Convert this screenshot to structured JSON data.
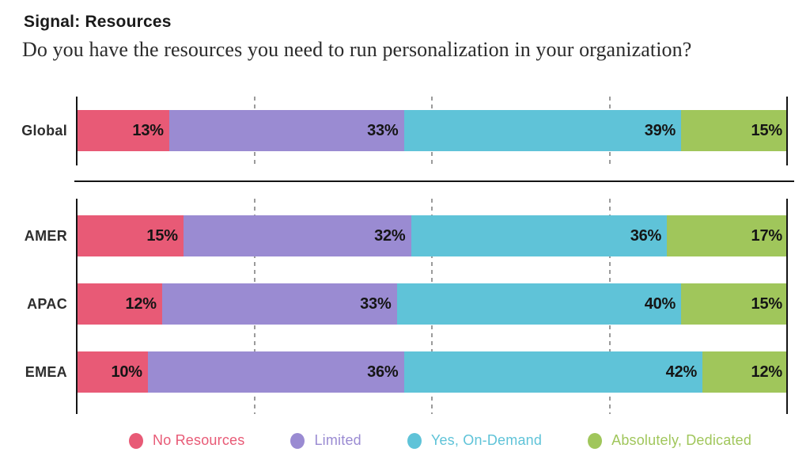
{
  "header": {
    "title": "Signal: Resources",
    "question": "Do you have the resources you need to run personalization in your organization?"
  },
  "chart_data": {
    "type": "bar",
    "orientation": "horizontal",
    "stacked": true,
    "unit": "%",
    "xlim": [
      0,
      100
    ],
    "gridlines_percent": [
      25,
      50,
      75
    ],
    "grid_style": "dashed",
    "categories": [
      "Global",
      "AMER",
      "APAC",
      "EMEA"
    ],
    "groups": [
      [
        "Global"
      ],
      [
        "AMER",
        "APAC",
        "EMEA"
      ]
    ],
    "series": [
      {
        "name": "No Resources",
        "color": "#E85A76",
        "values": [
          13,
          15,
          12,
          10
        ]
      },
      {
        "name": "Limited",
        "color": "#9A8BD2",
        "values": [
          33,
          32,
          33,
          36
        ]
      },
      {
        "name": "Yes, On-Demand",
        "color": "#5FC3D8",
        "values": [
          39,
          36,
          40,
          42
        ]
      },
      {
        "name": "Absolutely, Dedicated",
        "color": "#A0C65B",
        "values": [
          15,
          17,
          15,
          12
        ]
      }
    ],
    "axis_color": "#151515",
    "gridline_color": "#9B9B9B",
    "value_label_color": "#151515",
    "legend_position": "bottom"
  }
}
